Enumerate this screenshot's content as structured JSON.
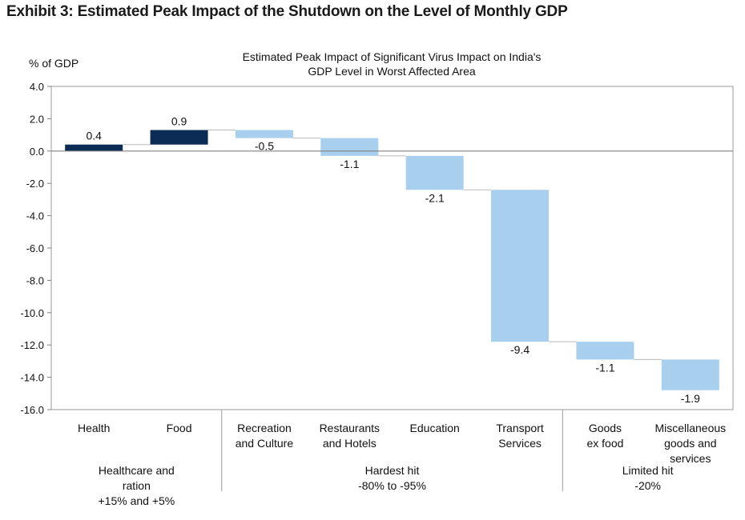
{
  "exhibit_title": "Exhibit 3: Estimated Peak Impact of the Shutdown on the Level of Monthly GDP",
  "chart_data": {
    "type": "bar",
    "subtype": "waterfall",
    "title_lines": [
      "Estimated Peak Impact of Significant Virus Impact on India's",
      "GDP Level in Worst Affected Area"
    ],
    "ylabel": "% of GDP",
    "ylim": [
      -16,
      4
    ],
    "yticks": [
      4,
      2,
      0,
      -2,
      -4,
      -6,
      -8,
      -10,
      -12,
      -14,
      -16
    ],
    "ytick_labels": [
      "4.0",
      "2.0",
      "0.0",
      "-2.0",
      "-4.0",
      "-6.0",
      "-8.0",
      "-10.0",
      "-12.0",
      "-14.0",
      "-16.0"
    ],
    "grid": false,
    "legend": "none",
    "categories": [
      [
        "Health"
      ],
      [
        "Food"
      ],
      [
        "Recreation",
        "and Culture"
      ],
      [
        "Restaurants",
        "and Hotels"
      ],
      [
        "Education"
      ],
      [
        "Transport",
        "Services"
      ],
      [
        "Goods",
        "ex food"
      ],
      [
        "Miscellaneous",
        "goods and",
        "services"
      ]
    ],
    "values": [
      0.4,
      0.9,
      -0.5,
      -1.1,
      -2.1,
      -9.4,
      -1.1,
      -1.9
    ],
    "value_labels": [
      "0.4",
      "0.9",
      "-0.5",
      "-1.1",
      "-2.1",
      "-9.4",
      "-1.1",
      "-1.9"
    ],
    "waterfall_bases": [
      0.0,
      0.4,
      1.3,
      0.8,
      -0.3,
      -2.4,
      -11.8,
      -12.9
    ],
    "groups": [
      {
        "lines": [
          "Healthcare and",
          "ration",
          "+15% and +5%"
        ],
        "categories": [
          0,
          1
        ]
      },
      {
        "lines": [
          "Hardest hit",
          "-80% to -95%"
        ],
        "categories": [
          2,
          3,
          4,
          5
        ]
      },
      {
        "lines": [
          "Limited hit",
          "-20%"
        ],
        "categories": [
          6,
          7
        ]
      }
    ],
    "colors": {
      "positive": "#0b2d55",
      "negative": "#a8cfee",
      "connector": "#b9b9b9",
      "axis": "#808080"
    }
  }
}
